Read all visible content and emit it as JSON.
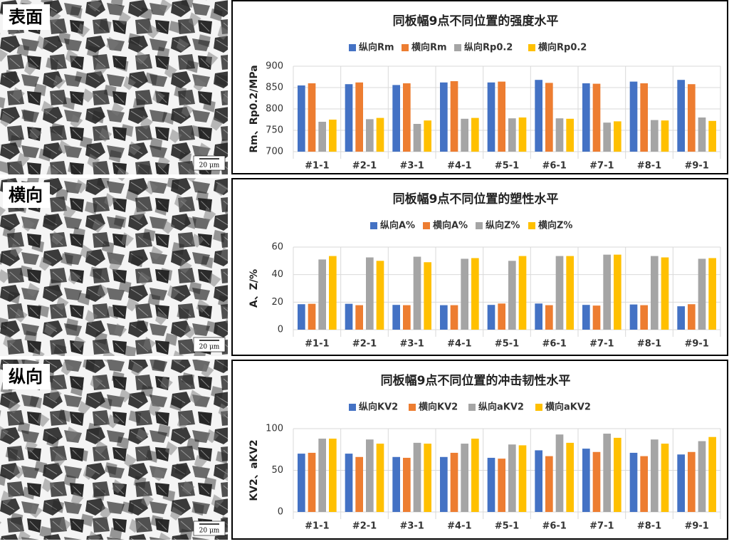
{
  "micrographs": [
    {
      "label": "表面",
      "scale": "20 μm"
    },
    {
      "label": "横向",
      "scale": "20 μm"
    },
    {
      "label": "纵向",
      "scale": "20 μm"
    }
  ],
  "chart_data": [
    {
      "type": "bar",
      "title": "同板幅9点不同位置的强度水平",
      "y_label": "Rm、Rp0.2/MPa",
      "categories": [
        "#1-1",
        "#2-1",
        "#3-1",
        "#4-1",
        "#5-1",
        "#6-1",
        "#7-1",
        "#8-1",
        "#9-1"
      ],
      "series": [
        {
          "name": "纵向Rm",
          "color": "#4472c4",
          "values": [
            855,
            858,
            856,
            862,
            862,
            868,
            860,
            864,
            868
          ]
        },
        {
          "name": "横向Rm",
          "color": "#ed7d31",
          "values": [
            860,
            862,
            860,
            865,
            864,
            861,
            859,
            860,
            858
          ]
        },
        {
          "name": "纵向Rp0.2",
          "color": "#a5a5a5",
          "values": [
            770,
            776,
            765,
            777,
            778,
            778,
            768,
            774,
            780
          ]
        },
        {
          "name": "横向Rp0.2",
          "color": "#ffc000",
          "values": [
            775,
            779,
            773,
            779,
            780,
            777,
            771,
            773,
            772
          ]
        }
      ],
      "ylim": [
        700,
        900
      ],
      "yticks": [
        700,
        750,
        800,
        850,
        900
      ],
      "grid": true,
      "legend": "top"
    },
    {
      "type": "bar",
      "title": "同板幅9点不同位置的塑性水平",
      "y_label": "A、Z/%",
      "categories": [
        "#1-1",
        "#2-1",
        "#3-1",
        "#4-1",
        "#5-1",
        "#6-1",
        "#7-1",
        "#8-1",
        "#9-1"
      ],
      "series": [
        {
          "name": "纵向A%",
          "color": "#4472c4",
          "values": [
            18.5,
            18.8,
            18,
            17.8,
            18,
            19,
            18,
            18.3,
            17
          ]
        },
        {
          "name": "横向A%",
          "color": "#ed7d31",
          "values": [
            18.8,
            17.8,
            17.8,
            17.8,
            19,
            17.8,
            17.5,
            17.8,
            18.5
          ]
        },
        {
          "name": "纵向Z%",
          "color": "#a5a5a5",
          "values": [
            51,
            52.5,
            53,
            51.5,
            50,
            53.5,
            54.5,
            53.5,
            51.5
          ]
        },
        {
          "name": "横向Z%",
          "color": "#ffc000",
          "values": [
            53.5,
            50,
            49,
            52,
            53.5,
            53.5,
            54.5,
            52.5,
            52
          ]
        }
      ],
      "ylim": [
        0,
        60
      ],
      "yticks": [
        0,
        20,
        40,
        60
      ],
      "grid": true,
      "legend": "top"
    },
    {
      "type": "bar",
      "title": "同板幅9点不同位置的冲击韧性水平",
      "y_label": "KV2、aKV2",
      "categories": [
        "#1-1",
        "#2-1",
        "#3-1",
        "#4-1",
        "#5-1",
        "#6-1",
        "#7-1",
        "#8-1",
        "#9-1"
      ],
      "series": [
        {
          "name": "纵向KV2",
          "color": "#4472c4",
          "values": [
            70,
            70,
            66,
            66,
            65,
            74,
            76,
            71,
            69
          ]
        },
        {
          "name": "横向KV2",
          "color": "#ed7d31",
          "values": [
            71,
            66,
            65,
            71,
            64,
            67,
            72,
            67,
            72
          ]
        },
        {
          "name": "纵向aKV2",
          "color": "#a5a5a5",
          "values": [
            88,
            87,
            83,
            82,
            81,
            93,
            94,
            87,
            85
          ]
        },
        {
          "name": "横向aKV2",
          "color": "#ffc000",
          "values": [
            88,
            82,
            82,
            88,
            80,
            83,
            89,
            82,
            90
          ]
        }
      ],
      "ylim": [
        0,
        100
      ],
      "yticks": [
        0,
        50,
        100
      ],
      "grid": true,
      "legend": "top"
    }
  ]
}
